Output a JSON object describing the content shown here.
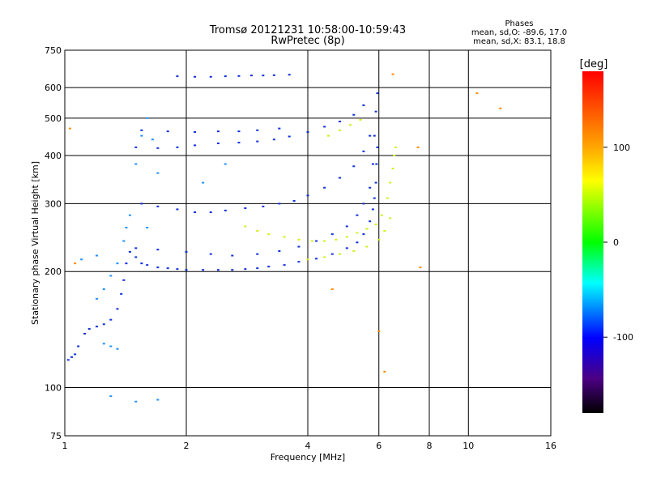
{
  "chart_data": {
    "type": "scatter",
    "title": "Tromsø 20121231 10:58:00-10:59:43",
    "subtitle": "RwPretec (8p)",
    "xlabel": "Frequency [MHz]",
    "ylabel": "Stationary phase Virtual Height [km]",
    "x_scale": "log",
    "y_scale": "log",
    "xlim": [
      1,
      16
    ],
    "ylim": [
      75,
      750
    ],
    "x_ticks": [
      1,
      2,
      4,
      6,
      8,
      10,
      16
    ],
    "y_ticks": [
      75,
      100,
      200,
      300,
      400,
      500,
      600,
      750
    ],
    "grid": true,
    "phases_box": {
      "title": "Phases",
      "line1": "mean, sd,O: -89.6, 17.0",
      "line2": "mean, sd,X: 83.1, 18.8"
    },
    "colorbar": {
      "label": "[deg]",
      "range": [
        -180,
        180
      ],
      "ticks": [
        100,
        0,
        -100
      ],
      "colors": [
        "#ff0000",
        "#ffff00",
        "#00ff00",
        "#00ffff",
        "#0000ff",
        "#6a0dad",
        "#000000"
      ]
    },
    "series": [
      {
        "color": "#1030e0",
        "points": [
          [
            1.02,
            118
          ],
          [
            1.04,
            120
          ],
          [
            1.06,
            122
          ],
          [
            1.08,
            128
          ],
          [
            1.12,
            138
          ],
          [
            1.15,
            142
          ],
          [
            1.2,
            144
          ],
          [
            1.25,
            146
          ],
          [
            1.3,
            150
          ],
          [
            1.35,
            160
          ],
          [
            1.38,
            175
          ],
          [
            1.4,
            190
          ],
          [
            1.42,
            210
          ],
          [
            1.45,
            225
          ],
          [
            1.5,
            218
          ],
          [
            1.55,
            210
          ],
          [
            1.6,
            208
          ],
          [
            1.7,
            205
          ],
          [
            1.8,
            204
          ],
          [
            1.9,
            203
          ],
          [
            2.0,
            202
          ],
          [
            2.2,
            202
          ],
          [
            2.4,
            202
          ],
          [
            2.6,
            202
          ],
          [
            2.8,
            203
          ],
          [
            3.0,
            204
          ],
          [
            3.2,
            206
          ],
          [
            3.5,
            208
          ],
          [
            3.8,
            212
          ],
          [
            4.2,
            216
          ],
          [
            4.6,
            222
          ],
          [
            5.0,
            230
          ],
          [
            5.3,
            238
          ],
          [
            5.5,
            250
          ],
          [
            5.7,
            270
          ],
          [
            5.8,
            290
          ],
          [
            5.85,
            310
          ],
          [
            5.9,
            340
          ],
          [
            5.92,
            380
          ],
          [
            5.95,
            420
          ],
          [
            1.5,
            230
          ],
          [
            1.7,
            228
          ],
          [
            2.0,
            225
          ],
          [
            2.3,
            222
          ],
          [
            2.6,
            220
          ],
          [
            3.0,
            222
          ],
          [
            3.4,
            226
          ],
          [
            3.8,
            232
          ],
          [
            4.2,
            240
          ],
          [
            4.6,
            250
          ],
          [
            5.0,
            262
          ],
          [
            5.3,
            280
          ],
          [
            5.5,
            300
          ],
          [
            5.7,
            330
          ],
          [
            5.8,
            380
          ],
          [
            5.85,
            450
          ],
          [
            5.9,
            520
          ],
          [
            5.95,
            580
          ],
          [
            1.55,
            300
          ],
          [
            1.7,
            295
          ],
          [
            1.9,
            290
          ],
          [
            2.1,
            285
          ],
          [
            2.3,
            285
          ],
          [
            2.5,
            288
          ],
          [
            2.8,
            292
          ],
          [
            3.1,
            295
          ],
          [
            3.4,
            300
          ],
          [
            3.7,
            305
          ],
          [
            4.0,
            315
          ],
          [
            4.4,
            330
          ],
          [
            4.8,
            350
          ],
          [
            5.2,
            375
          ],
          [
            5.5,
            410
          ],
          [
            5.7,
            450
          ],
          [
            1.5,
            420
          ],
          [
            1.7,
            418
          ],
          [
            1.9,
            420
          ],
          [
            2.1,
            425
          ],
          [
            2.4,
            430
          ],
          [
            2.7,
            432
          ],
          [
            3.0,
            435
          ],
          [
            3.3,
            440
          ],
          [
            3.6,
            448
          ],
          [
            4.0,
            460
          ],
          [
            4.4,
            475
          ],
          [
            4.8,
            490
          ],
          [
            5.2,
            510
          ],
          [
            5.5,
            540
          ],
          [
            1.55,
            465
          ],
          [
            1.8,
            462
          ],
          [
            2.1,
            460
          ],
          [
            2.4,
            462
          ],
          [
            2.7,
            462
          ],
          [
            3.0,
            465
          ],
          [
            3.4,
            470
          ],
          [
            1.9,
            642
          ],
          [
            2.1,
            640
          ],
          [
            2.3,
            640
          ],
          [
            2.5,
            642
          ],
          [
            2.7,
            643
          ],
          [
            2.9,
            645
          ],
          [
            3.1,
            645
          ],
          [
            3.3,
            646
          ],
          [
            3.6,
            648
          ]
        ]
      },
      {
        "color": "#1e90ff",
        "points": [
          [
            1.2,
            170
          ],
          [
            1.25,
            180
          ],
          [
            1.3,
            195
          ],
          [
            1.35,
            210
          ],
          [
            1.4,
            240
          ],
          [
            1.42,
            260
          ],
          [
            1.45,
            280
          ],
          [
            1.5,
            380
          ],
          [
            1.55,
            450
          ],
          [
            1.6,
            500
          ],
          [
            1.65,
            440
          ],
          [
            1.7,
            360
          ],
          [
            1.25,
            130
          ],
          [
            1.3,
            128
          ],
          [
            1.35,
            126
          ],
          [
            1.1,
            215
          ],
          [
            1.2,
            220
          ],
          [
            1.6,
            260
          ],
          [
            2.2,
            340
          ],
          [
            2.5,
            380
          ],
          [
            1.3,
            95
          ],
          [
            1.5,
            92
          ],
          [
            1.7,
            93
          ]
        ]
      },
      {
        "color": "#d4ee1a",
        "points": [
          [
            2.8,
            262
          ],
          [
            3.0,
            255
          ],
          [
            3.2,
            250
          ],
          [
            3.5,
            246
          ],
          [
            3.8,
            242
          ],
          [
            4.1,
            240
          ],
          [
            4.4,
            240
          ],
          [
            4.7,
            242
          ],
          [
            5.0,
            246
          ],
          [
            5.3,
            252
          ],
          [
            5.6,
            258
          ],
          [
            5.9,
            265
          ],
          [
            6.1,
            280
          ],
          [
            6.3,
            310
          ],
          [
            6.4,
            340
          ],
          [
            6.5,
            370
          ],
          [
            6.55,
            400
          ],
          [
            6.6,
            420
          ],
          [
            4.0,
            215
          ],
          [
            4.4,
            218
          ],
          [
            4.8,
            222
          ],
          [
            5.2,
            226
          ],
          [
            5.6,
            232
          ],
          [
            6.0,
            242
          ],
          [
            6.2,
            255
          ],
          [
            6.4,
            275
          ],
          [
            4.5,
            450
          ],
          [
            4.8,
            465
          ],
          [
            5.1,
            480
          ],
          [
            5.4,
            495
          ]
        ]
      },
      {
        "color": "#ff8c00",
        "points": [
          [
            1.03,
            470
          ],
          [
            1.06,
            210
          ],
          [
            6.5,
            650
          ],
          [
            7.5,
            420
          ],
          [
            10.5,
            580
          ],
          [
            12.0,
            530
          ],
          [
            4.6,
            180
          ],
          [
            6.0,
            140
          ],
          [
            6.2,
            110
          ],
          [
            7.6,
            205
          ]
        ]
      }
    ]
  }
}
